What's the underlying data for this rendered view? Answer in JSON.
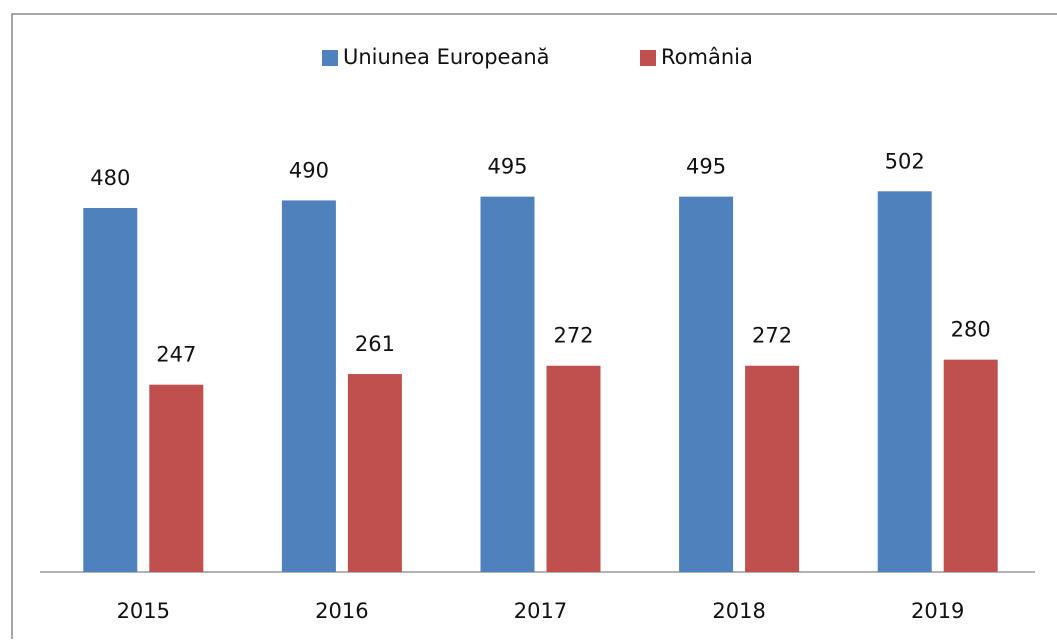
{
  "chart_data": {
    "type": "bar",
    "categories": [
      "2015",
      "2016",
      "2017",
      "2018",
      "2019"
    ],
    "series": [
      {
        "name": "Uniunea Europeană",
        "color": "#4f81bd",
        "values": [
          480,
          490,
          495,
          495,
          502
        ]
      },
      {
        "name": "România",
        "color": "#c0504d",
        "values": [
          247,
          261,
          272,
          272,
          280
        ]
      }
    ],
    "ylim": [
      0,
      600
    ],
    "legend": "top"
  }
}
